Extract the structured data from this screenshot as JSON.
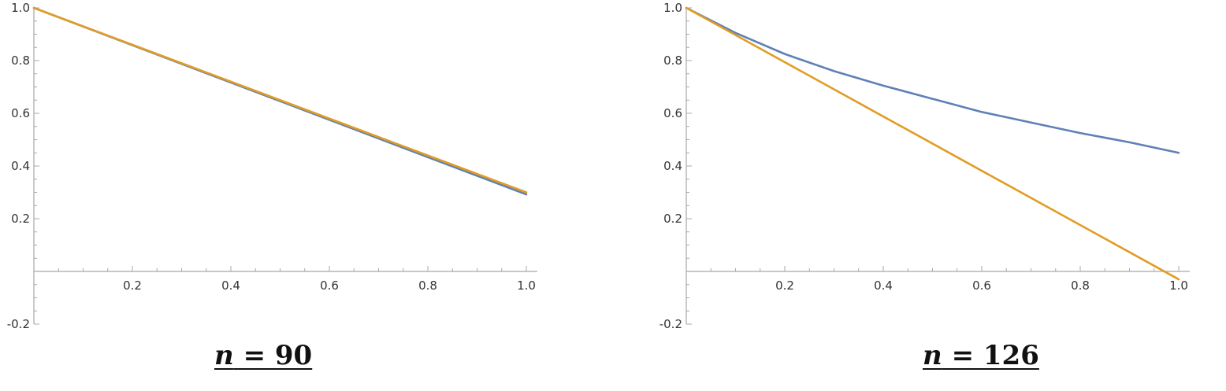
{
  "chart_data": [
    {
      "type": "line",
      "caption_var": "n",
      "caption_rest": " = 90",
      "xlim": [
        0,
        1.0
      ],
      "ylim": [
        -0.2,
        1.0
      ],
      "x_ticks": [
        {
          "value": 0.2,
          "label": "0.2"
        },
        {
          "value": 0.4,
          "label": "0.4"
        },
        {
          "value": 0.6,
          "label": "0.6"
        },
        {
          "value": 0.8,
          "label": "0.8"
        },
        {
          "value": 1.0,
          "label": "1.0"
        }
      ],
      "y_ticks": [
        {
          "value": -0.2,
          "label": "-0.2"
        },
        {
          "value": 0.2,
          "label": "0.2"
        },
        {
          "value": 0.4,
          "label": "0.4"
        },
        {
          "value": 0.6,
          "label": "0.6"
        },
        {
          "value": 0.8,
          "label": "0.8"
        },
        {
          "value": 1.0,
          "label": "1.0"
        }
      ],
      "grid": false,
      "series": [
        {
          "color": "#5e81b5",
          "x": [
            0,
            0.25,
            0.5,
            0.75,
            1.0
          ],
          "y": [
            1.0,
            0.823,
            0.646,
            0.469,
            0.292
          ]
        },
        {
          "color": "#e19c24",
          "x": [
            0,
            0.25,
            0.5,
            0.75,
            1.0
          ],
          "y": [
            1.0,
            0.825,
            0.65,
            0.475,
            0.3
          ]
        }
      ]
    },
    {
      "type": "line",
      "caption_var": "n",
      "caption_rest": " = 126",
      "xlim": [
        0,
        1.0
      ],
      "ylim": [
        -0.2,
        1.0
      ],
      "x_ticks": [
        {
          "value": 0.2,
          "label": "0.2"
        },
        {
          "value": 0.4,
          "label": "0.4"
        },
        {
          "value": 0.6,
          "label": "0.6"
        },
        {
          "value": 0.8,
          "label": "0.8"
        },
        {
          "value": 1.0,
          "label": "1.0"
        }
      ],
      "y_ticks": [
        {
          "value": -0.2,
          "label": "-0.2"
        },
        {
          "value": 0.2,
          "label": "0.2"
        },
        {
          "value": 0.4,
          "label": "0.4"
        },
        {
          "value": 0.6,
          "label": "0.6"
        },
        {
          "value": 0.8,
          "label": "0.8"
        },
        {
          "value": 1.0,
          "label": "1.0"
        }
      ],
      "grid": false,
      "series": [
        {
          "color": "#5e81b5",
          "x": [
            0,
            0.1,
            0.2,
            0.3,
            0.4,
            0.5,
            0.6,
            0.7,
            0.8,
            0.9,
            1.0
          ],
          "y": [
            1.0,
            0.905,
            0.825,
            0.76,
            0.705,
            0.655,
            0.605,
            0.565,
            0.525,
            0.49,
            0.45
          ]
        },
        {
          "color": "#e19c24",
          "x": [
            0,
            1.0
          ],
          "y": [
            1.0,
            -0.03
          ]
        }
      ]
    }
  ]
}
